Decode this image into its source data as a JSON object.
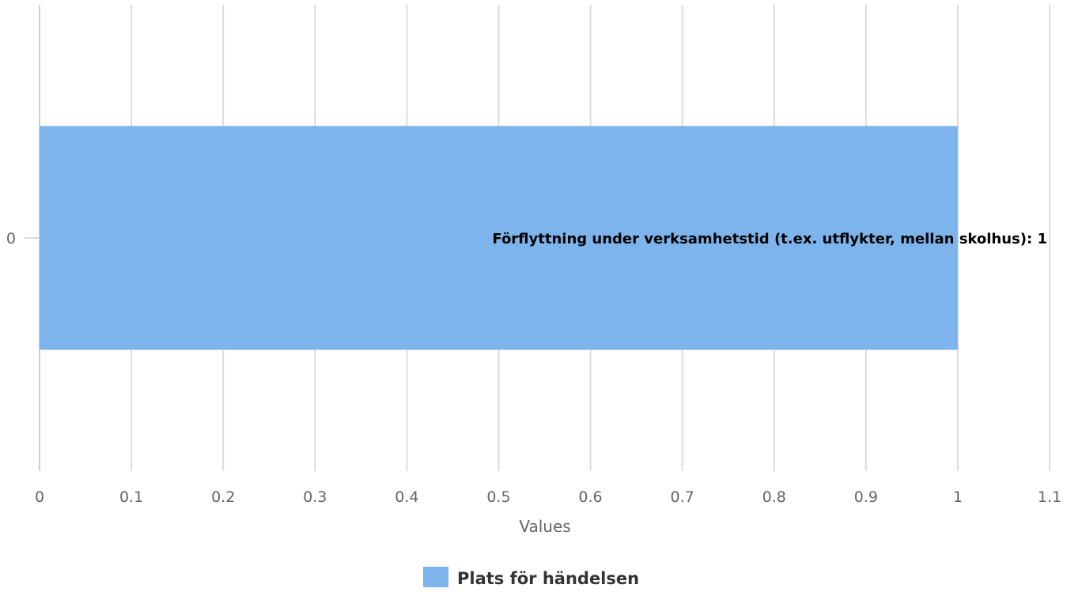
{
  "chart_data": {
    "type": "bar",
    "orientation": "horizontal",
    "categories": [
      "0"
    ],
    "series": [
      {
        "name": "Plats för händelsen",
        "color": "#7cb4eb",
        "values": [
          1
        ],
        "data_labels": [
          "Förflyttning under verksamhetstid (t.ex. utflykter, mellan skolhus): 1"
        ]
      }
    ],
    "xlabel": "Values",
    "ylabel": "",
    "xlim": [
      0,
      1.1
    ],
    "xticks": [
      "0",
      "0.1",
      "0.2",
      "0.3",
      "0.4",
      "0.5",
      "0.6",
      "0.7",
      "0.8",
      "0.9",
      "1",
      "1.1"
    ],
    "grid": true,
    "legend": {
      "position": "bottom-center",
      "entries": [
        "Plats för händelsen"
      ]
    }
  }
}
